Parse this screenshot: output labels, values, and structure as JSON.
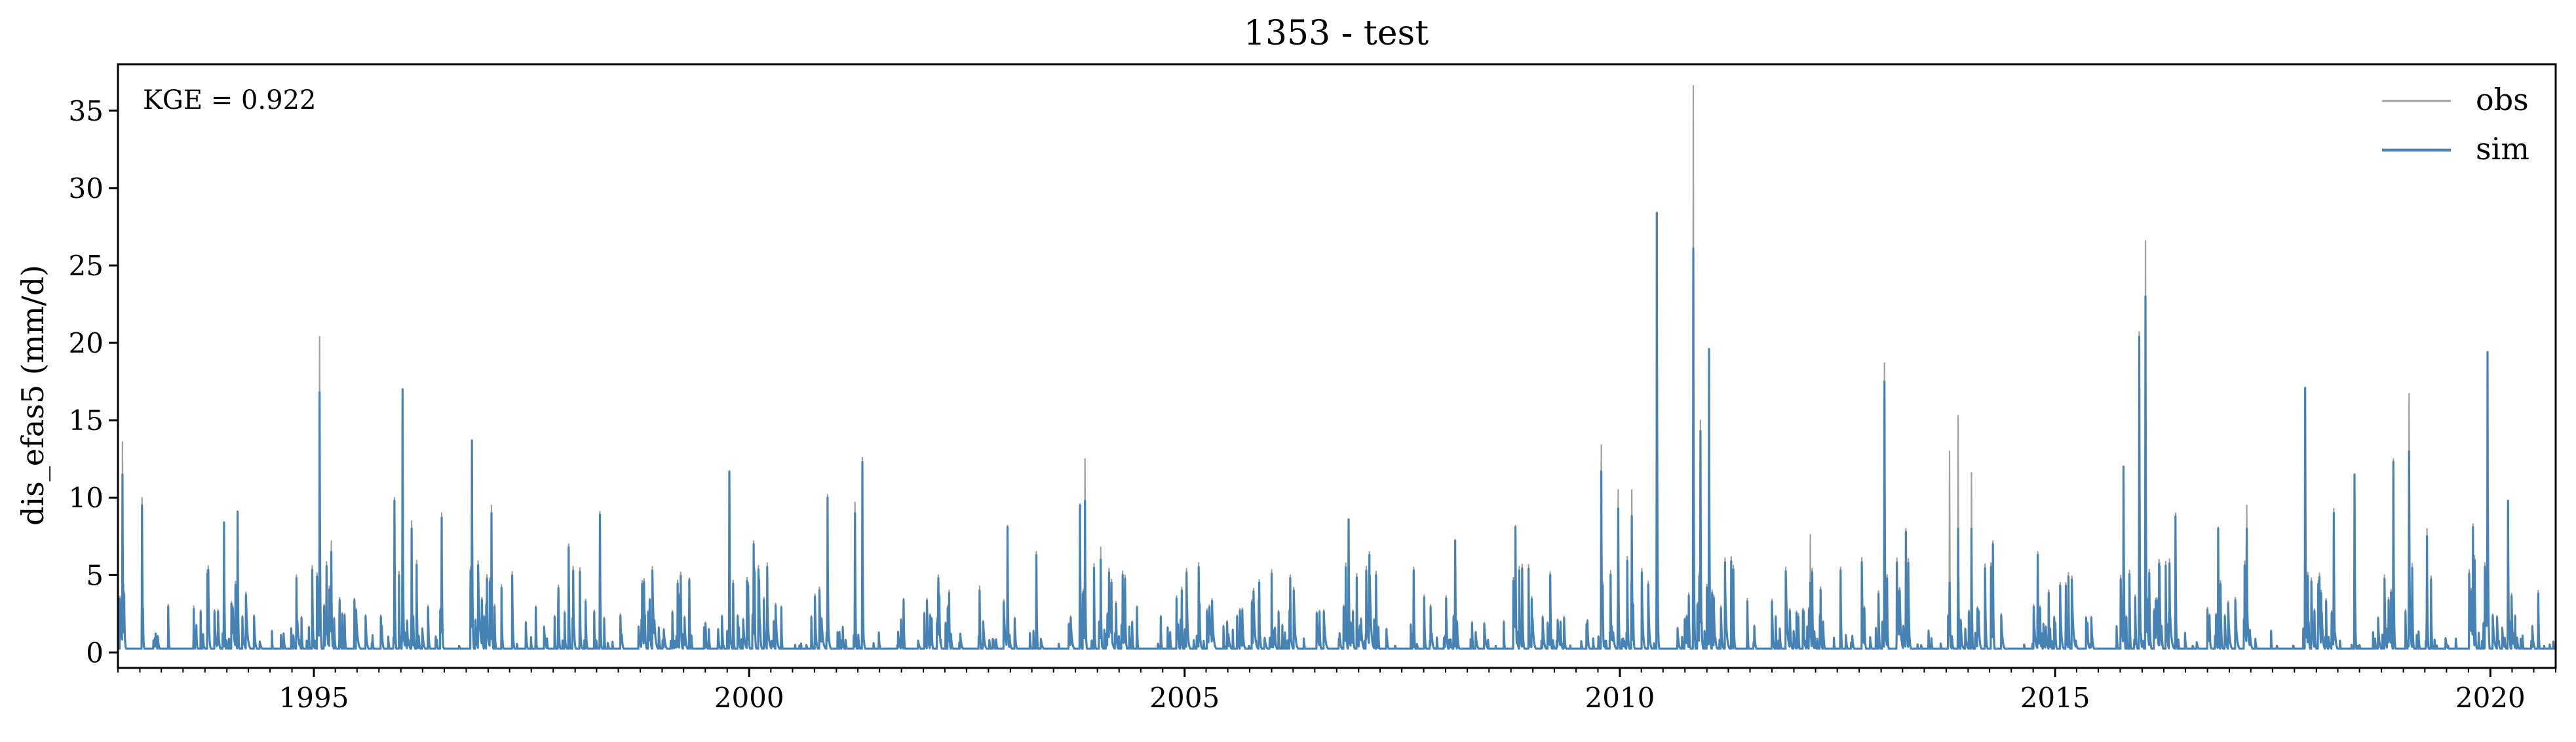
{
  "chart_data": {
    "type": "line",
    "title": "1353 - test",
    "xlabel": "",
    "ylabel": "dis_efas5 (mm/d)",
    "annotation": "KGE = 0.922",
    "xlim": [
      "1992-10-01",
      "2020-10-01"
    ],
    "ylim": [
      -1,
      38
    ],
    "x_ticks": [
      "1995",
      "2000",
      "2005",
      "2010",
      "2015",
      "2020"
    ],
    "y_ticks": [
      "0",
      "5",
      "10",
      "15",
      "20",
      "25",
      "30",
      "35"
    ],
    "grid": false,
    "legend_position": "top-right",
    "series": [
      {
        "name": "obs",
        "color": "#a0a0a0",
        "peaks": [
          [
            "1992-10-20",
            13.6
          ],
          [
            "1993-01-10",
            10.0
          ],
          [
            "1993-08-15",
            3.0
          ],
          [
            "1993-12-20",
            8.3
          ],
          [
            "1994-02-15",
            9.0
          ],
          [
            "1994-10-20",
            5.0
          ],
          [
            "1995-01-25",
            20.4
          ],
          [
            "1995-03-15",
            7.2
          ],
          [
            "1995-06-20",
            3.5
          ],
          [
            "1995-12-05",
            10.0
          ],
          [
            "1996-01-08",
            17.0
          ],
          [
            "1996-02-15",
            8.5
          ],
          [
            "1996-06-20",
            9.0
          ],
          [
            "1996-10-25",
            13.7
          ],
          [
            "1997-01-15",
            9.5
          ],
          [
            "1997-07-20",
            3.0
          ],
          [
            "1997-12-05",
            7.0
          ],
          [
            "1998-04-15",
            9.1
          ],
          [
            "1998-11-10",
            3.5
          ],
          [
            "1999-04-25",
            4.8
          ],
          [
            "1999-10-10",
            11.6
          ],
          [
            "2000-01-20",
            7.2
          ],
          [
            "2000-05-15",
            3.0
          ],
          [
            "2000-11-25",
            10.2
          ],
          [
            "2001-03-20",
            9.7
          ],
          [
            "2001-04-20",
            12.6
          ],
          [
            "2001-10-10",
            3.5
          ],
          [
            "2002-03-05",
            5.0
          ],
          [
            "2002-08-25",
            4.3
          ],
          [
            "2002-12-20",
            8.2
          ],
          [
            "2003-04-20",
            6.5
          ],
          [
            "2003-10-20",
            9.6
          ],
          [
            "2003-11-10",
            12.5
          ],
          [
            "2004-01-15",
            6.8
          ],
          [
            "2004-06-15",
            3.0
          ],
          [
            "2004-12-20",
            4.2
          ],
          [
            "2005-11-10",
            4.7
          ],
          [
            "2006-03-20",
            5.0
          ],
          [
            "2006-11-20",
            8.6
          ],
          [
            "2007-02-15",
            6.5
          ],
          [
            "2007-08-20",
            5.5
          ],
          [
            "2008-02-10",
            7.3
          ],
          [
            "2008-10-20",
            8.2
          ],
          [
            "2009-03-15",
            5.2
          ],
          [
            "2009-10-15",
            13.4
          ],
          [
            "2009-12-25",
            10.5
          ],
          [
            "2010-02-20",
            10.5
          ],
          [
            "2010-06-05",
            28.4
          ],
          [
            "2010-11-05",
            36.6
          ],
          [
            "2010-12-05",
            15.0
          ],
          [
            "2011-01-10",
            19.6
          ],
          [
            "2011-06-20",
            3.5
          ],
          [
            "2012-01-20",
            2.5
          ],
          [
            "2012-03-10",
            7.6
          ],
          [
            "2012-07-15",
            5.5
          ],
          [
            "2013-01-15",
            18.7
          ],
          [
            "2013-04-15",
            8.0
          ],
          [
            "2013-10-15",
            13.0
          ],
          [
            "2013-11-20",
            15.3
          ],
          [
            "2014-01-15",
            11.6
          ],
          [
            "2014-04-15",
            7.2
          ],
          [
            "2014-10-20",
            6.5
          ],
          [
            "2015-02-15",
            4.5
          ],
          [
            "2015-10-15",
            12.0
          ],
          [
            "2015-12-20",
            20.7
          ],
          [
            "2016-01-15",
            26.6
          ],
          [
            "2016-05-20",
            9.0
          ],
          [
            "2016-11-15",
            8.1
          ],
          [
            "2017-03-15",
            9.5
          ],
          [
            "2017-11-15",
            17.1
          ],
          [
            "2018-03-15",
            9.3
          ],
          [
            "2018-06-10",
            11.5
          ],
          [
            "2018-11-20",
            12.5
          ],
          [
            "2019-01-25",
            16.7
          ],
          [
            "2019-04-10",
            8.0
          ],
          [
            "2019-10-20",
            8.3
          ],
          [
            "2019-12-20",
            19.4
          ],
          [
            "2020-03-15",
            9.8
          ],
          [
            "2020-07-20",
            4.0
          ]
        ]
      },
      {
        "name": "sim",
        "color": "#4682b4",
        "peaks": [
          [
            "1992-10-20",
            11.5
          ],
          [
            "1993-01-10",
            9.5
          ],
          [
            "1993-08-15",
            2.8
          ],
          [
            "1993-12-20",
            8.4
          ],
          [
            "1994-02-15",
            9.1
          ],
          [
            "1994-10-20",
            4.8
          ],
          [
            "1995-01-25",
            16.8
          ],
          [
            "1995-03-15",
            6.5
          ],
          [
            "1995-06-20",
            3.4
          ],
          [
            "1995-12-05",
            9.8
          ],
          [
            "1996-01-08",
            17.0
          ],
          [
            "1996-02-15",
            8.0
          ],
          [
            "1996-06-20",
            8.7
          ],
          [
            "1996-10-25",
            13.7
          ],
          [
            "1997-01-15",
            9.0
          ],
          [
            "1997-07-20",
            2.9
          ],
          [
            "1997-12-05",
            6.8
          ],
          [
            "1998-04-15",
            8.9
          ],
          [
            "1998-11-10",
            3.4
          ],
          [
            "1999-04-25",
            4.7
          ],
          [
            "1999-10-10",
            11.7
          ],
          [
            "2000-01-20",
            7.0
          ],
          [
            "2000-05-15",
            2.9
          ],
          [
            "2000-11-25",
            10.0
          ],
          [
            "2001-03-20",
            9.0
          ],
          [
            "2001-04-20",
            12.3
          ],
          [
            "2001-10-10",
            3.4
          ],
          [
            "2002-03-05",
            4.8
          ],
          [
            "2002-08-25",
            4.0
          ],
          [
            "2002-12-20",
            8.1
          ],
          [
            "2003-04-20",
            6.3
          ],
          [
            "2003-10-20",
            9.5
          ],
          [
            "2003-11-10",
            9.8
          ],
          [
            "2004-01-15",
            6.0
          ],
          [
            "2004-06-15",
            2.9
          ],
          [
            "2004-12-20",
            4.0
          ],
          [
            "2005-11-10",
            4.5
          ],
          [
            "2006-03-20",
            4.8
          ],
          [
            "2006-11-20",
            8.6
          ],
          [
            "2007-02-15",
            6.3
          ],
          [
            "2007-08-20",
            5.3
          ],
          [
            "2008-02-10",
            7.2
          ],
          [
            "2008-10-20",
            8.1
          ],
          [
            "2009-03-15",
            5.0
          ],
          [
            "2009-10-15",
            11.7
          ],
          [
            "2009-12-25",
            9.3
          ],
          [
            "2010-02-20",
            8.8
          ],
          [
            "2010-06-05",
            28.4
          ],
          [
            "2010-11-05",
            26.1
          ],
          [
            "2010-12-05",
            14.3
          ],
          [
            "2011-01-10",
            19.6
          ],
          [
            "2011-06-20",
            3.3
          ],
          [
            "2012-01-20",
            2.3
          ],
          [
            "2012-03-10",
            4.5
          ],
          [
            "2012-07-15",
            5.3
          ],
          [
            "2013-01-15",
            17.5
          ],
          [
            "2013-04-15",
            7.8
          ],
          [
            "2013-10-15",
            4.5
          ],
          [
            "2013-11-20",
            8.0
          ],
          [
            "2014-01-15",
            8.0
          ],
          [
            "2014-04-15",
            7.0
          ],
          [
            "2014-10-20",
            6.3
          ],
          [
            "2015-02-15",
            4.3
          ],
          [
            "2015-10-15",
            12.0
          ],
          [
            "2015-12-20",
            20.4
          ],
          [
            "2016-01-15",
            23.0
          ],
          [
            "2016-05-20",
            8.8
          ],
          [
            "2016-11-15",
            8.0
          ],
          [
            "2017-03-15",
            8.0
          ],
          [
            "2017-11-15",
            17.1
          ],
          [
            "2018-03-15",
            9.0
          ],
          [
            "2018-06-10",
            11.5
          ],
          [
            "2018-11-20",
            12.3
          ],
          [
            "2019-01-25",
            13.0
          ],
          [
            "2019-04-10",
            7.5
          ],
          [
            "2019-10-20",
            8.1
          ],
          [
            "2019-12-20",
            19.4
          ],
          [
            "2020-03-15",
            9.8
          ],
          [
            "2020-07-20",
            3.8
          ]
        ]
      }
    ]
  }
}
